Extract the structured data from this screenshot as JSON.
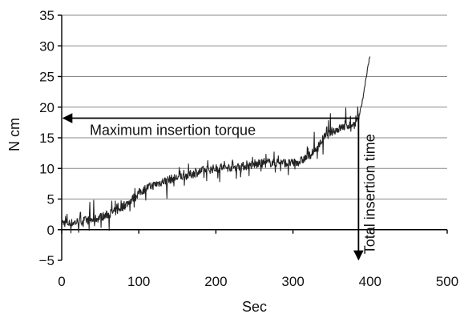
{
  "chart_data": {
    "type": "line",
    "xlabel": "Sec",
    "ylabel": "N cm",
    "xlim": [
      0,
      500
    ],
    "ylim": [
      -5,
      35
    ],
    "x_ticks": [
      0,
      100,
      200,
      300,
      400,
      500
    ],
    "y_ticks": [
      -5,
      0,
      5,
      10,
      15,
      20,
      25,
      30,
      35
    ],
    "grid": "horizontal",
    "series": [
      {
        "x": [
          0,
          10,
          20,
          30,
          40,
          50,
          60,
          70,
          80,
          90,
          100,
          110,
          120,
          130,
          140,
          150,
          160,
          170,
          180,
          190,
          200,
          210,
          220,
          230,
          240,
          250,
          260,
          270,
          280,
          290,
          300,
          310,
          320,
          330,
          340,
          350,
          360,
          370,
          380,
          385,
          390,
          395,
          400
        ],
        "y": [
          1.2,
          1.0,
          1.3,
          1.5,
          1.6,
          2.0,
          2.5,
          3.0,
          3.8,
          4.8,
          6.0,
          6.8,
          7.3,
          7.8,
          8.2,
          8.5,
          8.8,
          9.1,
          9.5,
          9.8,
          10.0,
          10.1,
          10.2,
          10.3,
          10.4,
          10.6,
          10.8,
          10.9,
          11.0,
          10.9,
          10.8,
          11.2,
          12.0,
          13.0,
          15.0,
          16.0,
          16.5,
          17.0,
          17.2,
          18.0,
          21.0,
          25.0,
          28.5
        ]
      }
    ],
    "annotations": [
      {
        "text": "Maximum insertion torque",
        "kind": "horizontal-arrow",
        "y": 18.2,
        "x_from": 385,
        "x_to": 0
      },
      {
        "text": "Total insertion time",
        "kind": "vertical-arrow",
        "x": 385,
        "y_from": 18.2,
        "y_to": -5
      }
    ]
  }
}
